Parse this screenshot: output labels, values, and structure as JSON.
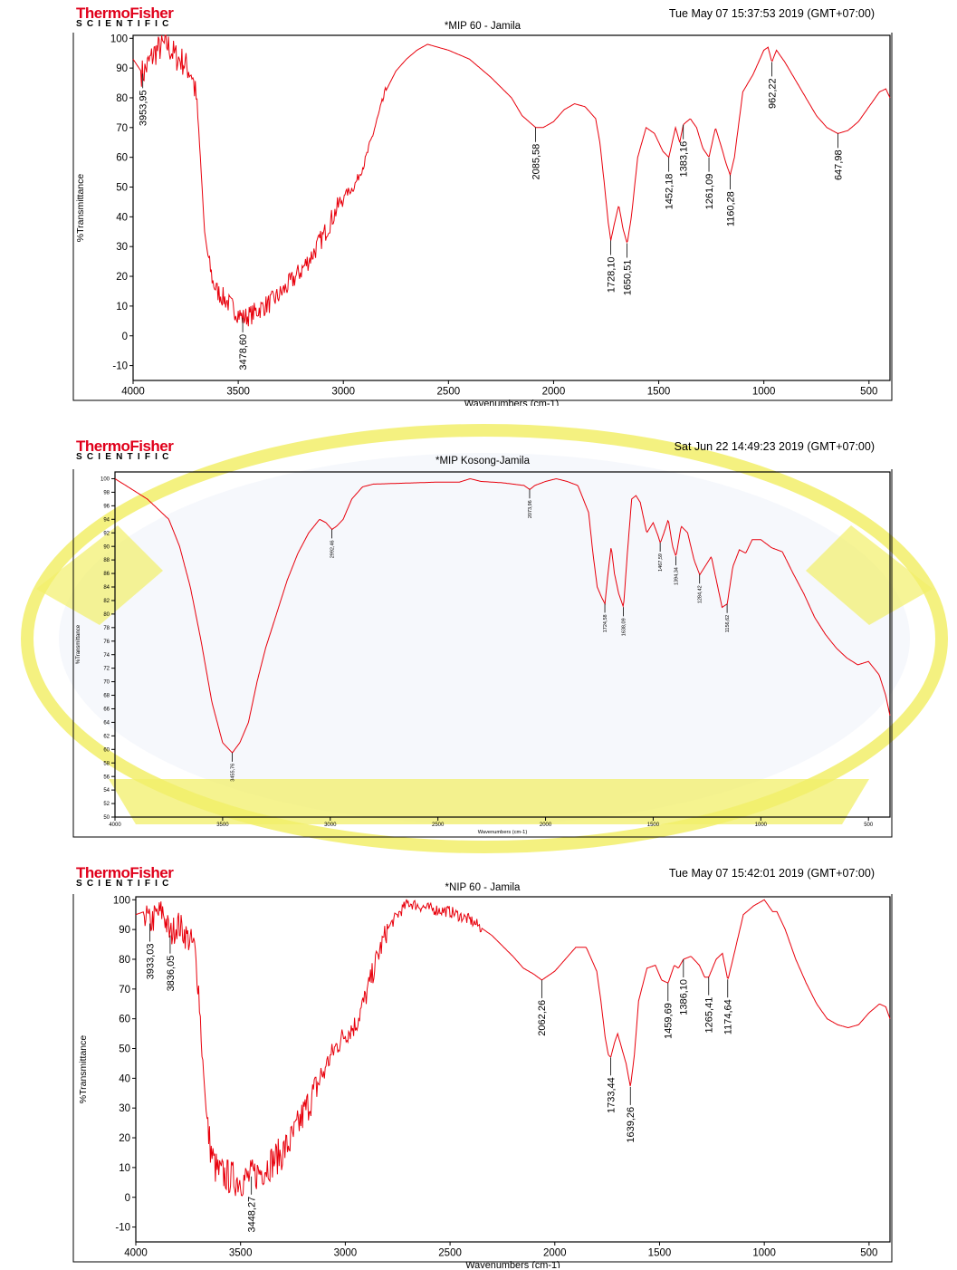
{
  "brand": {
    "name": "ThermoFisher",
    "sub": "SCIENTIFIC"
  },
  "colors": {
    "trace": "#e8000c",
    "brand_red": "#e0001b",
    "watermark": "#f2ef6a",
    "watermark_blue": "#e4eaf6"
  },
  "chart_data": [
    {
      "type": "line",
      "title": "*MIP 60 - Jamila",
      "timestamp": "Tue May 07 15:37:53 2019 (GMT+07:00)",
      "xlabel": "Wavenumbers (cm-1)",
      "ylabel": "%Transmittance",
      "xlim": [
        4000,
        400
      ],
      "ylim": [
        -15,
        101
      ],
      "x_ticks": [
        4000,
        3500,
        3000,
        2500,
        2000,
        1500,
        1000,
        500
      ],
      "y_ticks": [
        100,
        90,
        80,
        70,
        60,
        50,
        40,
        30,
        20,
        10,
        0,
        -10
      ],
      "noise": [
        [
          3960,
          3680,
          5
        ],
        [
          3640,
          3000,
          3.5
        ],
        [
          2990,
          2800,
          1.5
        ]
      ],
      "series": [
        {
          "x": [
            4000,
            3953,
            3900,
            3870,
            3840,
            3800,
            3760,
            3720,
            3700,
            3680,
            3660,
            3640,
            3620,
            3600,
            3560,
            3520,
            3478,
            3440,
            3400,
            3350,
            3300,
            3250,
            3200,
            3150,
            3100,
            3050,
            3000,
            2950,
            2900,
            2850,
            2800,
            2750,
            2700,
            2650,
            2600,
            2500,
            2400,
            2300,
            2200,
            2150,
            2085,
            2050,
            2000,
            1950,
            1900,
            1850,
            1800,
            1780,
            1760,
            1740,
            1728,
            1710,
            1690,
            1670,
            1650,
            1630,
            1600,
            1560,
            1520,
            1480,
            1452,
            1420,
            1400,
            1383,
            1350,
            1320,
            1290,
            1261,
            1230,
            1200,
            1180,
            1160,
            1140,
            1100,
            1050,
            1000,
            980,
            962,
            940,
            900,
            850,
            800,
            750,
            700,
            648,
            600,
            550,
            500,
            450,
            420,
            400
          ],
          "y": [
            93,
            88,
            95,
            97,
            98,
            94,
            92,
            88,
            80,
            60,
            35,
            25,
            18,
            15,
            12,
            9,
            6,
            7,
            9,
            11,
            14,
            18,
            22,
            27,
            33,
            40,
            47,
            50,
            58,
            70,
            82,
            89,
            93,
            96,
            98,
            96,
            93,
            87,
            80,
            74,
            70,
            70,
            72,
            76,
            78,
            77,
            73,
            65,
            52,
            38,
            32,
            38,
            44,
            36,
            31,
            40,
            60,
            70,
            68,
            62,
            60,
            70,
            65,
            71,
            73,
            70,
            63,
            60,
            70,
            63,
            58,
            54,
            60,
            82,
            88,
            96,
            97,
            92,
            96,
            92,
            86,
            80,
            74,
            70,
            68,
            69,
            72,
            77,
            82,
            83,
            80
          ]
        }
      ],
      "annotations": [
        "3953,95",
        "3478,60",
        "2085,58",
        "1728,10",
        "1650,51",
        "1452,18",
        "1383,16",
        "1261,09",
        "1160,28",
        "962,22",
        "647,98"
      ]
    },
    {
      "type": "line",
      "title": "*MIP Kosong-Jamila",
      "timestamp": "Sat Jun 22 14:49:23 2019 (GMT+07:00)",
      "xlabel": "Wavenumbers (cm-1)",
      "ylabel": "%Transmittance",
      "xlim": [
        4000,
        400
      ],
      "ylim": [
        50,
        101
      ],
      "x_ticks": [
        4000,
        3500,
        3000,
        2500,
        2000,
        1500,
        1000,
        500
      ],
      "y_ticks": [
        100,
        98,
        96,
        94,
        92,
        90,
        88,
        86,
        84,
        82,
        80,
        78,
        76,
        74,
        72,
        70,
        68,
        66,
        64,
        62,
        60,
        58,
        56,
        54,
        52,
        50
      ],
      "noise": [],
      "series": [
        {
          "x": [
            4000,
            3950,
            3900,
            3850,
            3800,
            3750,
            3700,
            3650,
            3600,
            3550,
            3500,
            3455,
            3420,
            3380,
            3340,
            3300,
            3250,
            3200,
            3150,
            3100,
            3050,
            3020,
            2992,
            2970,
            2940,
            2900,
            2850,
            2800,
            2700,
            2600,
            2500,
            2400,
            2350,
            2300,
            2200,
            2100,
            2073,
            2050,
            2000,
            1950,
            1900,
            1850,
            1800,
            1780,
            1760,
            1740,
            1724,
            1710,
            1695,
            1680,
            1660,
            1638,
            1620,
            1600,
            1580,
            1560,
            1530,
            1500,
            1480,
            1467,
            1450,
            1430,
            1410,
            1394,
            1370,
            1340,
            1310,
            1284,
            1260,
            1230,
            1200,
            1180,
            1156,
            1130,
            1100,
            1070,
            1040,
            1000,
            950,
            900,
            850,
            800,
            750,
            700,
            650,
            600,
            550,
            500,
            450,
            420,
            400
          ],
          "y": [
            100,
            99,
            98,
            97,
            95.5,
            94,
            90,
            84,
            76,
            67,
            61,
            59.5,
            61,
            64,
            70,
            75,
            80,
            85,
            89,
            92,
            94,
            93.5,
            92.5,
            93,
            94,
            97,
            98.8,
            99.2,
            99.3,
            99.4,
            99.5,
            99.5,
            100,
            99.6,
            99.4,
            99,
            98.4,
            99,
            99.6,
            100,
            99.6,
            99,
            95,
            89,
            84,
            82.5,
            81.5,
            86,
            90,
            86,
            83,
            81,
            89,
            97,
            97.5,
            96.5,
            92,
            93.5,
            91.8,
            90.5,
            92,
            94,
            90,
            88.5,
            93,
            92,
            88,
            85.8,
            87,
            88.5,
            84,
            81,
            81.5,
            87,
            89.5,
            89,
            91,
            91,
            89.8,
            89.2,
            86,
            83,
            79.5,
            77,
            75,
            73.5,
            72.5,
            73,
            71,
            68,
            65
          ]
        }
      ],
      "annotations": [
        "3455,76",
        "2992,46",
        "2073,96",
        "1724,58",
        "1638,09",
        "1467,59",
        "1394,34",
        "1284,42",
        "1156,62"
      ]
    },
    {
      "type": "line",
      "title": "*NIP 60 - Jamila",
      "timestamp": "Tue May 07 15:42:01 2019 (GMT+07:00)",
      "xlabel": "Wavenumbers (cm-1)",
      "ylabel": "%Transmittance",
      "xlim": [
        4000,
        400
      ],
      "ylim": [
        -15,
        101
      ],
      "x_ticks": [
        4000,
        3500,
        3000,
        2500,
        2000,
        1500,
        1000,
        500
      ],
      "y_ticks": [
        100,
        90,
        80,
        70,
        60,
        50,
        40,
        30,
        20,
        10,
        0,
        -10
      ],
      "noise": [
        [
          3960,
          3680,
          5
        ],
        [
          3660,
          3100,
          6
        ],
        [
          3090,
          2800,
          4
        ],
        [
          2790,
          2350,
          2
        ]
      ],
      "series": [
        {
          "x": [
            4000,
            3960,
            3933,
            3900,
            3870,
            3836,
            3800,
            3760,
            3720,
            3700,
            3680,
            3660,
            3640,
            3620,
            3600,
            3560,
            3520,
            3480,
            3448,
            3400,
            3350,
            3300,
            3250,
            3200,
            3150,
            3100,
            3050,
            3000,
            2950,
            2900,
            2850,
            2800,
            2750,
            2700,
            2650,
            2600,
            2500,
            2400,
            2300,
            2200,
            2150,
            2100,
            2062,
            2000,
            1950,
            1900,
            1850,
            1800,
            1780,
            1760,
            1745,
            1733,
            1715,
            1700,
            1680,
            1660,
            1639,
            1620,
            1600,
            1560,
            1520,
            1490,
            1459,
            1430,
            1410,
            1386,
            1350,
            1310,
            1285,
            1265,
            1230,
            1200,
            1174,
            1150,
            1100,
            1050,
            1000,
            960,
            940,
            900,
            850,
            800,
            750,
            700,
            650,
            600,
            550,
            500,
            450,
            420,
            400
          ],
          "y": [
            95,
            96,
            92,
            95,
            96,
            88,
            92,
            88,
            84,
            70,
            45,
            25,
            15,
            10,
            8,
            7,
            6,
            6,
            7,
            9,
            12,
            15,
            20,
            28,
            35,
            43,
            50,
            55,
            58,
            68,
            80,
            90,
            95,
            99,
            98,
            97,
            96,
            93,
            88,
            81,
            77,
            75,
            73,
            76,
            80,
            84,
            84,
            76,
            66,
            54,
            48,
            47,
            52,
            55,
            50,
            45,
            37,
            48,
            66,
            77,
            78,
            73,
            72,
            78,
            77,
            80,
            81,
            78,
            74,
            74,
            80,
            82,
            73,
            80,
            95,
            98,
            100,
            96,
            96,
            90,
            80,
            72,
            65,
            60,
            58,
            57,
            58,
            62,
            65,
            64,
            60
          ]
        }
      ],
      "annotations": [
        "3933,03",
        "3836,05",
        "3448,27",
        "2062,26",
        "1733,44",
        "1639,26",
        "1459,69",
        "1386,10",
        "1265,41",
        "1174,64"
      ]
    }
  ]
}
